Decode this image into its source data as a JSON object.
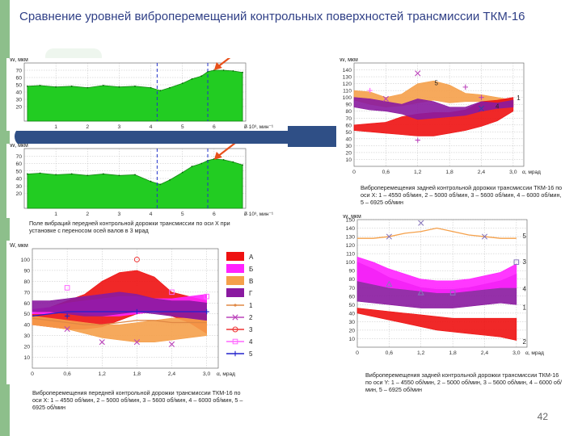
{
  "slide": {
    "title": "Сравнение уровней виброперемещений  контрольных поверхностей трансмиссии ТКМ-16",
    "page_number": "42",
    "accent_color": "#8dbf8b",
    "band_color": "#2f4f86"
  },
  "captions": {
    "c1": "Поле вибраций передней контрольной дорожки трансмиссии по оси X при установке с переносом осей валов в 3 мрад",
    "c2": "Виброперемещения задней контрольной дорожки трансмиссии ТКМ-16 по оси  X: 1 – 4550 об/мин, 2 – 5000 об/мин, 3 – 5600 об/мин, 4 – 6000 об/мин, 5 – 6925 об/мин",
    "c3": "Виброперемещения передней  контрольной дорожки трансмиссии ТКМ-16 по оси  X: 1 – 4550 об/мин, 2 – 5000 об/мин, 3 – 5600 об/мин, 4 – 6000 об/мин, 5 – 6925 об/мин",
    "c4": "Виброперемещения задней контрольной дорожки трансмиссии ТКМ-16 по оси  Y: 1 – 4550 об/мин, 2 – 5000 об/мин, 3 – 5600 об/мин, 4 – 6000 об/мин, 5 – 6925 об/мин"
  },
  "chart_data": [
    {
      "id": "A",
      "type": "area",
      "title": "",
      "ylabel": "W, мкм",
      "xlabel": "n·10³, мин⁻¹",
      "xlim": [
        0,
        7
      ],
      "ylim": [
        0,
        80
      ],
      "xticks": [
        "1",
        "2",
        "3",
        "4",
        "5",
        "6",
        "7"
      ],
      "yticks": [
        "20",
        "30",
        "40",
        "50",
        "60",
        "70"
      ],
      "guides": [
        4.2,
        5.8
      ],
      "arrow_target": [
        6.0,
        70
      ],
      "fill_color": "#22cc22",
      "x": [
        0.1,
        0.5,
        1,
        1.5,
        2,
        2.5,
        3,
        3.5,
        4,
        4.3,
        4.6,
        5,
        5.3,
        5.6,
        5.8,
        6,
        6.3,
        6.6,
        6.9
      ],
      "y": [
        48,
        49,
        47,
        48,
        46,
        49,
        47,
        48,
        46,
        42,
        46,
        52,
        58,
        62,
        68,
        70,
        70,
        69,
        67
      ]
    },
    {
      "id": "B",
      "type": "area",
      "title": "",
      "ylabel": "W, мкм",
      "xlabel": "n·10³, мин⁻¹",
      "xlim": [
        0,
        7
      ],
      "ylim": [
        0,
        80
      ],
      "xticks": [
        "1",
        "2",
        "3",
        "4",
        "5",
        "6",
        "7"
      ],
      "yticks": [
        "20",
        "30",
        "40",
        "50",
        "60",
        "70"
      ],
      "guides": [
        4.2,
        5.8
      ],
      "arrow_target": [
        6.0,
        65
      ],
      "fill_color": "#22cc22",
      "x": [
        0.1,
        0.5,
        1,
        1.5,
        2,
        2.5,
        3,
        3.5,
        4,
        4.3,
        4.6,
        5,
        5.3,
        5.6,
        5.8,
        6,
        6.3,
        6.6,
        6.9
      ],
      "y": [
        46,
        47,
        45,
        46,
        44,
        46,
        44,
        45,
        36,
        32,
        38,
        48,
        56,
        60,
        64,
        66,
        65,
        62,
        58
      ]
    },
    {
      "id": "C",
      "type": "area",
      "title": "",
      "ylabel": "W, мкм",
      "xlabel": "α, мрад",
      "xlim": [
        0,
        3.2
      ],
      "ylim": [
        0,
        150
      ],
      "xticks": [
        "0",
        "0,6",
        "1,2",
        "1,8",
        "2,4",
        "3,0"
      ],
      "yticks": [
        "10",
        "20",
        "30",
        "40",
        "50",
        "60",
        "70",
        "80",
        "90",
        "100",
        "110",
        "120",
        "130",
        "140"
      ],
      "x": [
        0,
        0.3,
        0.6,
        0.9,
        1.2,
        1.5,
        1.8,
        2.1,
        2.4,
        2.7,
        3.0
      ],
      "series": [
        {
          "name": "Б",
          "color": "#f5a04a",
          "upper": [
            110,
            108,
            100,
            105,
            120,
            124,
            118,
            106,
            104,
            100,
            96
          ],
          "lower": [
            96,
            90,
            86,
            88,
            92,
            96,
            92,
            94,
            94,
            92,
            88
          ]
        },
        {
          "name": "В",
          "color": "#ee1111",
          "upper": [
            60,
            62,
            64,
            72,
            76,
            78,
            78,
            82,
            94,
            96,
            100
          ],
          "lower": [
            52,
            50,
            48,
            46,
            44,
            44,
            48,
            52,
            58,
            66,
            80
          ]
        },
        {
          "name": "Г",
          "color": "#8a1aa0",
          "upper": [
            100,
            98,
            94,
            90,
            98,
            94,
            86,
            86,
            94,
            92,
            96
          ],
          "lower": [
            86,
            82,
            80,
            76,
            68,
            70,
            72,
            74,
            80,
            84,
            86
          ]
        }
      ],
      "markers": [
        {
          "x": 0.3,
          "y": 110,
          "symbol": "+",
          "color": "#ff66ff"
        },
        {
          "x": 1.2,
          "y": 135,
          "symbol": "x",
          "color": "#bb44bb"
        },
        {
          "x": 2.1,
          "y": 115,
          "symbol": "+",
          "color": "#bb44bb"
        },
        {
          "x": 2.4,
          "y": 100,
          "symbol": "+",
          "color": "#bb44bb"
        },
        {
          "x": 0.6,
          "y": 98,
          "symbol": "x",
          "color": "#bb44bb"
        },
        {
          "x": 1.2,
          "y": 38,
          "symbol": "+",
          "color": "#bb44bb"
        },
        {
          "x": 2.4,
          "y": 84,
          "symbol": "x",
          "color": "#3344aa"
        }
      ],
      "labels": [
        {
          "text": "5",
          "x": 1.55,
          "y": 118
        },
        {
          "text": "4",
          "x": 2.7,
          "y": 84
        },
        {
          "text": "1",
          "x": 3.1,
          "y": 96
        }
      ]
    },
    {
      "id": "D",
      "type": "area",
      "title": "",
      "ylabel": "W, мкм",
      "xlabel": "α, мрад",
      "xlim": [
        0,
        3.2
      ],
      "ylim": [
        0,
        110
      ],
      "xticks": [
        "0",
        "0,6",
        "1,2",
        "1,8",
        "2,4",
        "3,0"
      ],
      "yticks": [
        "10",
        "20",
        "30",
        "40",
        "50",
        "60",
        "70",
        "80",
        "90",
        "100"
      ],
      "x": [
        0,
        0.3,
        0.6,
        0.9,
        1.2,
        1.5,
        1.8,
        2.1,
        2.4,
        2.7,
        3.0
      ],
      "series": [
        {
          "name": "А",
          "color": "#ee1111",
          "upper": [
            50,
            56,
            62,
            68,
            80,
            88,
            90,
            84,
            70,
            66,
            62
          ],
          "lower": [
            40,
            38,
            36,
            36,
            38,
            44,
            50,
            52,
            48,
            42,
            32
          ]
        },
        {
          "name": "Б",
          "color": "#ff22ff",
          "upper": [
            54,
            56,
            60,
            62,
            64,
            66,
            66,
            64,
            64,
            66,
            68
          ],
          "lower": [
            50,
            50,
            52,
            50,
            48,
            48,
            50,
            52,
            52,
            52,
            50
          ]
        },
        {
          "name": "В",
          "color": "#f5a04a",
          "upper": [
            48,
            46,
            44,
            42,
            40,
            40,
            42,
            44,
            46,
            46,
            44
          ],
          "lower": [
            40,
            38,
            36,
            32,
            28,
            26,
            24,
            24,
            26,
            28,
            30
          ]
        },
        {
          "name": "Г",
          "color": "#8a1aa0",
          "upper": [
            62,
            62,
            64,
            66,
            68,
            70,
            68,
            64,
            62,
            62,
            60
          ],
          "lower": [
            52,
            52,
            50,
            48,
            48,
            50,
            52,
            50,
            48,
            46,
            44
          ]
        }
      ],
      "line_series": [
        {
          "name": "1",
          "color": "#e08844",
          "y": [
            46,
            44,
            42,
            40,
            40,
            42,
            44,
            44,
            42,
            42,
            42
          ]
        },
        {
          "name": "5",
          "color": "#2222cc",
          "y": [
            48,
            50,
            52,
            52,
            52,
            52,
            52,
            52,
            52,
            52,
            52
          ]
        }
      ],
      "markers": [
        {
          "x": 1.8,
          "y": 100,
          "symbol": "o",
          "color": "#ee3333"
        },
        {
          "x": 0.6,
          "y": 74,
          "symbol": "s",
          "color": "#ff66ff"
        },
        {
          "x": 2.4,
          "y": 70,
          "symbol": "s",
          "color": "#ff66ff"
        },
        {
          "x": 3.0,
          "y": 66,
          "symbol": "s",
          "color": "#ff66ff"
        },
        {
          "x": 0.6,
          "y": 36,
          "symbol": "x",
          "color": "#bb44bb"
        },
        {
          "x": 1.2,
          "y": 24,
          "symbol": "x",
          "color": "#bb44bb"
        },
        {
          "x": 1.8,
          "y": 24,
          "symbol": "x",
          "color": "#bb44bb"
        },
        {
          "x": 2.4,
          "y": 22,
          "symbol": "x",
          "color": "#bb44bb"
        },
        {
          "x": 0.6,
          "y": 48,
          "symbol": "+",
          "color": "#2222cc"
        },
        {
          "x": 1.8,
          "y": 52,
          "symbol": "+",
          "color": "#2222cc"
        },
        {
          "x": 3.0,
          "y": 52,
          "symbol": "+",
          "color": "#2222cc"
        }
      ],
      "legend": [
        {
          "label": "А",
          "kind": "patch",
          "color": "#ee1111"
        },
        {
          "label": "Б",
          "kind": "patch",
          "color": "#ff22ff"
        },
        {
          "label": "В",
          "kind": "patch",
          "color": "#f5a04a"
        },
        {
          "label": "Г",
          "kind": "patch",
          "color": "#8a1aa0"
        },
        {
          "label": "1",
          "kind": "line",
          "color": "#e08844",
          "symbol": "dot"
        },
        {
          "label": "2",
          "kind": "line",
          "color": "#bb44bb",
          "symbol": "x"
        },
        {
          "label": "3",
          "kind": "line",
          "color": "#ee3333",
          "symbol": "o"
        },
        {
          "label": "4",
          "kind": "line",
          "color": "#ff66ff",
          "symbol": "s"
        },
        {
          "label": "5",
          "kind": "line",
          "color": "#2222cc",
          "symbol": "+"
        }
      ]
    },
    {
      "id": "E",
      "type": "area",
      "title": "",
      "ylabel": "W, мкм",
      "xlabel": "α, мрад",
      "xlim": [
        0,
        3.2
      ],
      "ylim": [
        0,
        150
      ],
      "xticks": [
        "0",
        "0,6",
        "1,2",
        "1,8",
        "2,4",
        "3,0"
      ],
      "yticks": [
        "10",
        "20",
        "30",
        "40",
        "50",
        "60",
        "70",
        "80",
        "90",
        "100",
        "110",
        "120",
        "130",
        "140",
        "150"
      ],
      "x": [
        0,
        0.3,
        0.6,
        0.9,
        1.2,
        1.5,
        1.8,
        2.1,
        2.4,
        2.7,
        3.0
      ],
      "series": [
        {
          "name": "Г",
          "color": "#8a1aa0",
          "upper": [
            100,
            92,
            82,
            76,
            70,
            68,
            68,
            70,
            74,
            78,
            86
          ],
          "lower": [
            54,
            52,
            50,
            48,
            46,
            46,
            46,
            48,
            50,
            52,
            50
          ]
        },
        {
          "name": "Б",
          "color": "#ff22ff",
          "upper": [
            106,
            100,
            92,
            86,
            80,
            78,
            78,
            80,
            84,
            88,
            98
          ],
          "lower": [
            78,
            74,
            70,
            68,
            66,
            64,
            64,
            66,
            68,
            70,
            70
          ]
        },
        {
          "name": "А",
          "color": "#ee1111",
          "upper": [
            46,
            44,
            42,
            40,
            38,
            36,
            34,
            34,
            34,
            34,
            34
          ],
          "lower": [
            40,
            36,
            32,
            28,
            24,
            20,
            18,
            16,
            14,
            12,
            8
          ]
        }
      ],
      "line_series": [
        {
          "name": "5",
          "color": "#f5a04a",
          "y": [
            128,
            128,
            130,
            134,
            136,
            140,
            136,
            132,
            130,
            128,
            128
          ]
        }
      ],
      "markers": [
        {
          "x": 0.6,
          "y": 130,
          "symbol": "x",
          "color": "#8877bb"
        },
        {
          "x": 1.2,
          "y": 146,
          "symbol": "x",
          "color": "#8877bb"
        },
        {
          "x": 2.4,
          "y": 130,
          "symbol": "x",
          "color": "#8877bb"
        },
        {
          "x": 0.6,
          "y": 74,
          "symbol": "^",
          "color": "#8877bb"
        },
        {
          "x": 1.2,
          "y": 64,
          "symbol": "^",
          "color": "#8877bb"
        },
        {
          "x": 1.8,
          "y": 64,
          "symbol": "s",
          "color": "#8877bb"
        },
        {
          "x": 3.0,
          "y": 100,
          "symbol": "s",
          "color": "#8877bb"
        }
      ],
      "labels": [
        {
          "text": "5",
          "x": 3.15,
          "y": 128
        },
        {
          "text": "3",
          "x": 3.15,
          "y": 98
        },
        {
          "text": "4",
          "x": 3.15,
          "y": 66
        },
        {
          "text": "1",
          "x": 3.15,
          "y": 44
        },
        {
          "text": "2",
          "x": 3.15,
          "y": 4
        }
      ]
    }
  ]
}
